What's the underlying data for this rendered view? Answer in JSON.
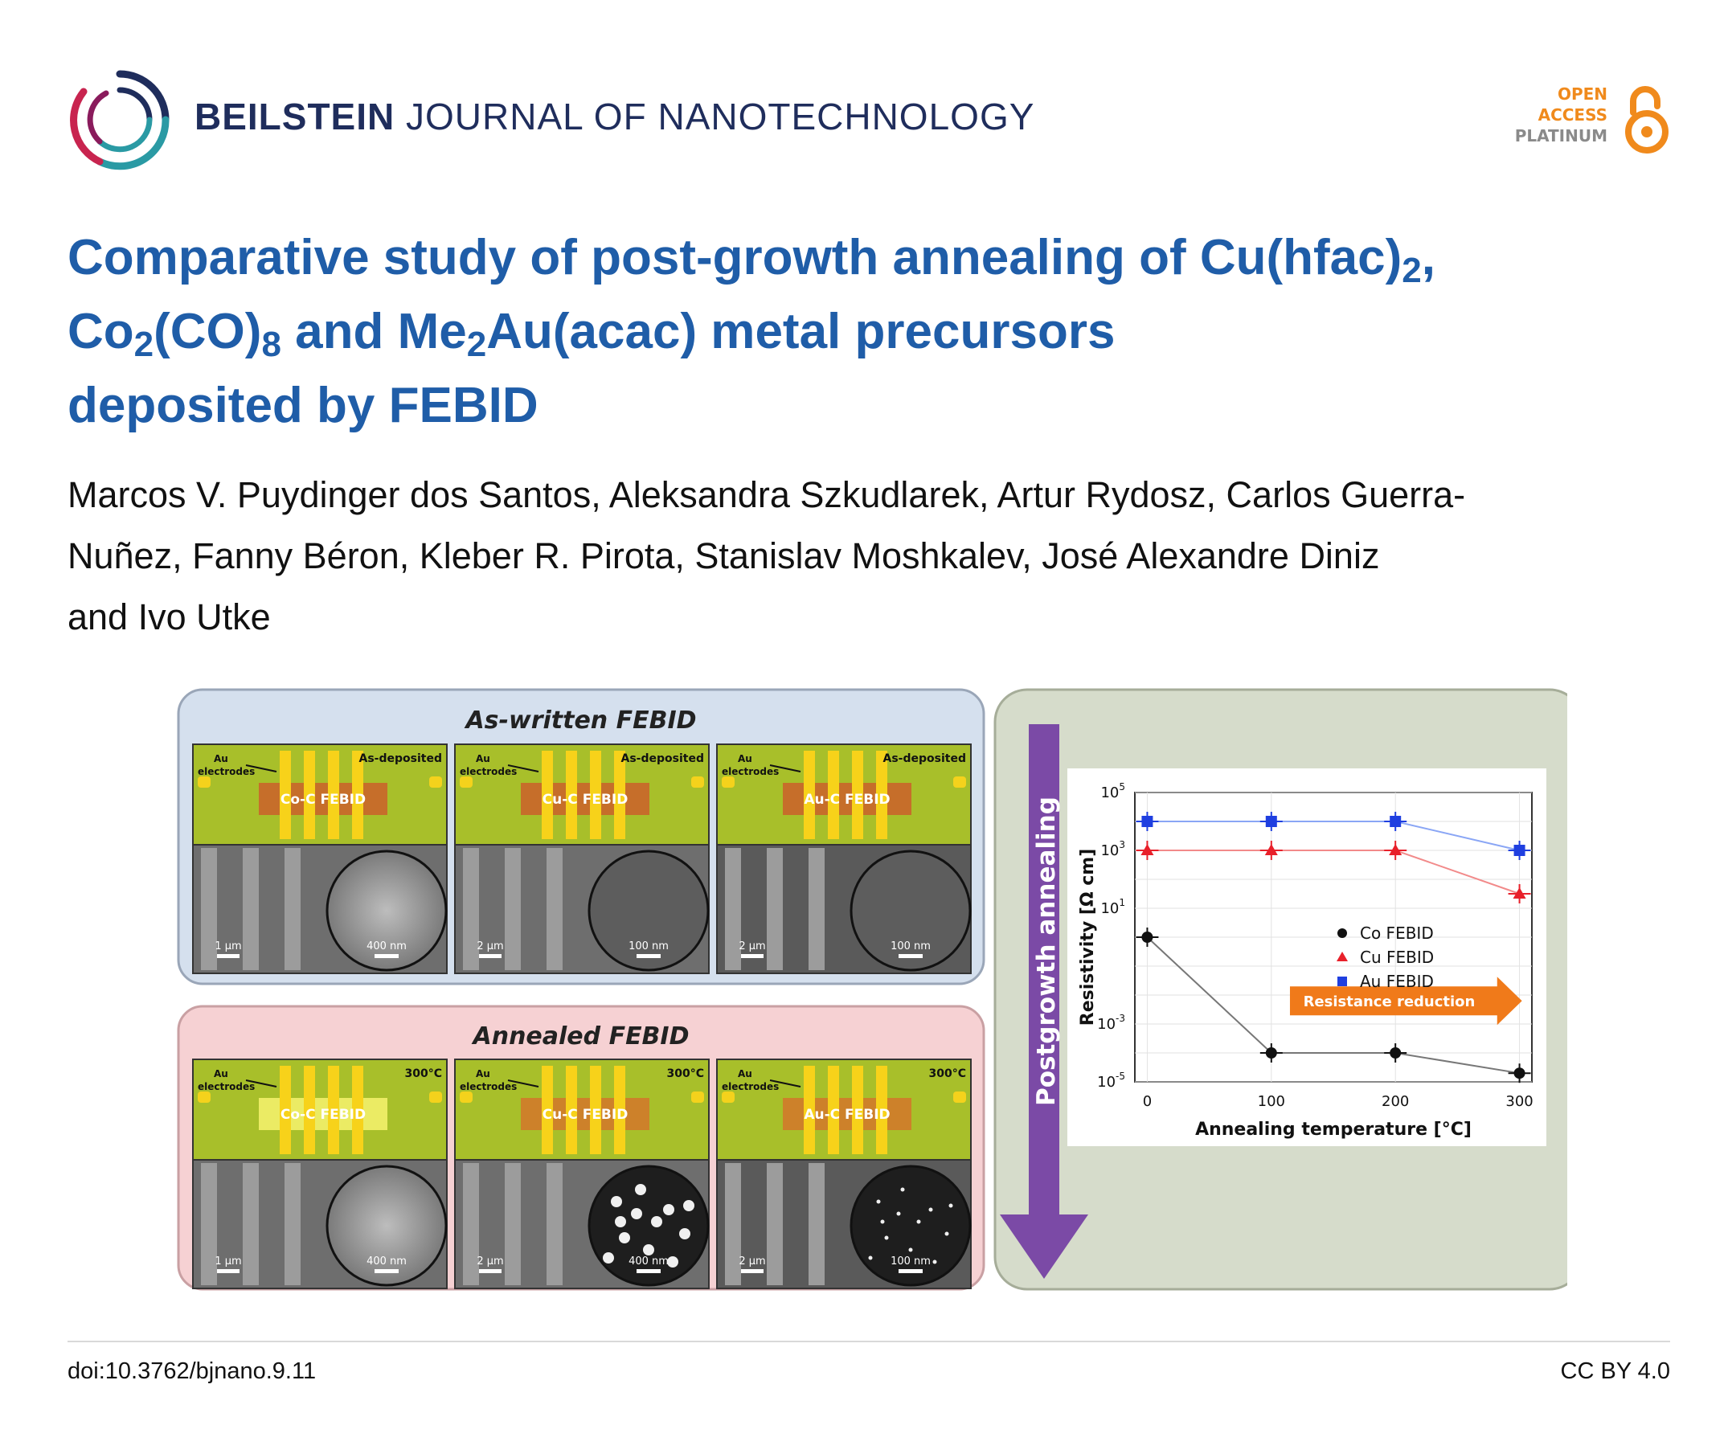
{
  "header": {
    "journal_bold": "BEILSTEIN",
    "journal_light": "JOURNAL OF NANOTECHNOLOGY",
    "open_access": [
      "OPEN",
      "ACCESS",
      "PLATINUM"
    ],
    "logo_icon": "beilstein-ring-logo",
    "oa_icon": "open-lock-icon"
  },
  "article": {
    "title_parts": {
      "l1": "Comparative study of post-growth annealing of Cu(hfac)",
      "s1": "2",
      "l1b": ",",
      "l2a": "Co",
      "s2": "2",
      "l2b": "(CO)",
      "s3": "8",
      "l2c": " and Me",
      "s4": "2",
      "l2d": "Au(acac) metal precursors",
      "l3": "deposited by FEBID"
    },
    "authors_l1": "Marcos V. Puydinger dos Santos, Aleksandra Szkudlarek, Artur Rydosz, Carlos Guerra-",
    "authors_l2": "Nuñez, Fanny Béron, Kleber R. Pirota, Stanislav Moshkalev, José Alexandre Diniz",
    "authors_l3": "and Ivo Utke"
  },
  "abstract_figure": {
    "panel_top_title": "As-written FEBID",
    "panel_bottom_title": "Annealed FEBID",
    "arrow_label": "Postgrowth annealing",
    "top_panels": [
      {
        "state": "As-deposited",
        "deposit": "Co-C FEBID",
        "electrodes": [
          "Au",
          "electrodes"
        ],
        "scale_left": "1 µm",
        "scale_inset": "400 nm"
      },
      {
        "state": "As-deposited",
        "deposit": "Cu-C FEBID",
        "electrodes": [
          "Au",
          "electrodes"
        ],
        "scale_left": "2 µm",
        "scale_inset": "100 nm"
      },
      {
        "state": "As-deposited",
        "deposit": "Au-C FEBID",
        "electrodes": [
          "Au",
          "electrodes"
        ],
        "scale_left": "2 µm",
        "scale_inset": "100 nm"
      }
    ],
    "bottom_panels": [
      {
        "state": "300°C",
        "deposit": "Co-C FEBID",
        "electrodes": [
          "Au",
          "electrodes"
        ],
        "scale_left": "1 µm",
        "scale_inset": "400 nm"
      },
      {
        "state": "300°C",
        "deposit": "Cu-C FEBID",
        "electrodes": [
          "Au",
          "electrodes"
        ],
        "scale_left": "2 µm",
        "scale_inset": "400 nm"
      },
      {
        "state": "300°C",
        "deposit": "Au-C FEBID",
        "electrodes": [
          "Au",
          "electrodes"
        ],
        "scale_left": "2 µm",
        "scale_inset": "100 nm"
      }
    ]
  },
  "chart_data": {
    "type": "scatter",
    "title": "",
    "xlabel": "Annealing temperature [°C]",
    "ylabel": "Resistivity [Ω cm]",
    "y_scale": "log",
    "xlim": [
      -10,
      310
    ],
    "ylim_exp": [
      -5,
      5
    ],
    "x_ticks": [
      0,
      100,
      200,
      300
    ],
    "y_ticks": [
      {
        "base": "10",
        "exp": "5",
        "e": 5
      },
      {
        "base": "10",
        "exp": "3",
        "e": 3
      },
      {
        "base": "10",
        "exp": "1",
        "e": 1
      },
      {
        "base": "10",
        "exp": "-3",
        "e": -3
      },
      {
        "base": "10",
        "exp": "-5",
        "e": -5
      }
    ],
    "series": [
      {
        "name": "Co FEBID",
        "color": "#111111",
        "marker": "circle",
        "x": [
          0,
          100,
          200,
          300
        ],
        "y_exp": [
          0.0,
          -4.0,
          -4.0,
          -4.7
        ]
      },
      {
        "name": "Cu FEBID",
        "color": "#e8202a",
        "marker": "triangle",
        "x": [
          0,
          100,
          200,
          300
        ],
        "y_exp": [
          3.0,
          3.0,
          3.0,
          1.5
        ]
      },
      {
        "name": "Au FEBID",
        "color": "#1f3fe0",
        "marker": "square",
        "x": [
          0,
          100,
          200,
          300
        ],
        "y_exp": [
          4.0,
          4.0,
          4.0,
          3.0
        ]
      }
    ],
    "annotation": "Resistance reduction",
    "legend_position": "center-right",
    "grid": true
  },
  "footer": {
    "doi": "doi:10.3762/bjnano.9.11",
    "license": "CC BY 4.0"
  },
  "colors": {
    "title_blue": "#1f5da8",
    "journal_navy": "#1f2d5c",
    "oa_orange": "#f08a1c",
    "panel_blue": "#d5e0ee",
    "panel_pink": "#f6d1d3",
    "panel_green": "#d6dccb",
    "arrow_purple": "#7b4aa6"
  }
}
